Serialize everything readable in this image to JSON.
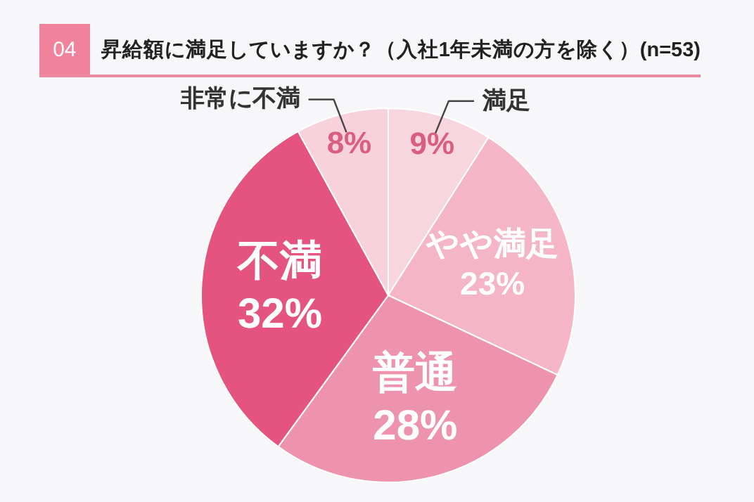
{
  "chart_data": {
    "type": "pie",
    "title": "昇給額に満足していますか？（入社1年未満の方を除く）(n=53)",
    "annotations": [
      "04"
    ],
    "categories": [
      "満足",
      "やや満足",
      "普通",
      "不満",
      "非常に不満"
    ],
    "values": [
      9,
      23,
      28,
      32,
      8
    ],
    "value_labels": [
      "9%",
      "23%",
      "28%",
      "32%",
      "8%"
    ],
    "colors": [
      "#f8d6df",
      "#f4b6c6",
      "#ee93ae",
      "#e4547e",
      "#f7d2dc"
    ],
    "legend": false
  }
}
